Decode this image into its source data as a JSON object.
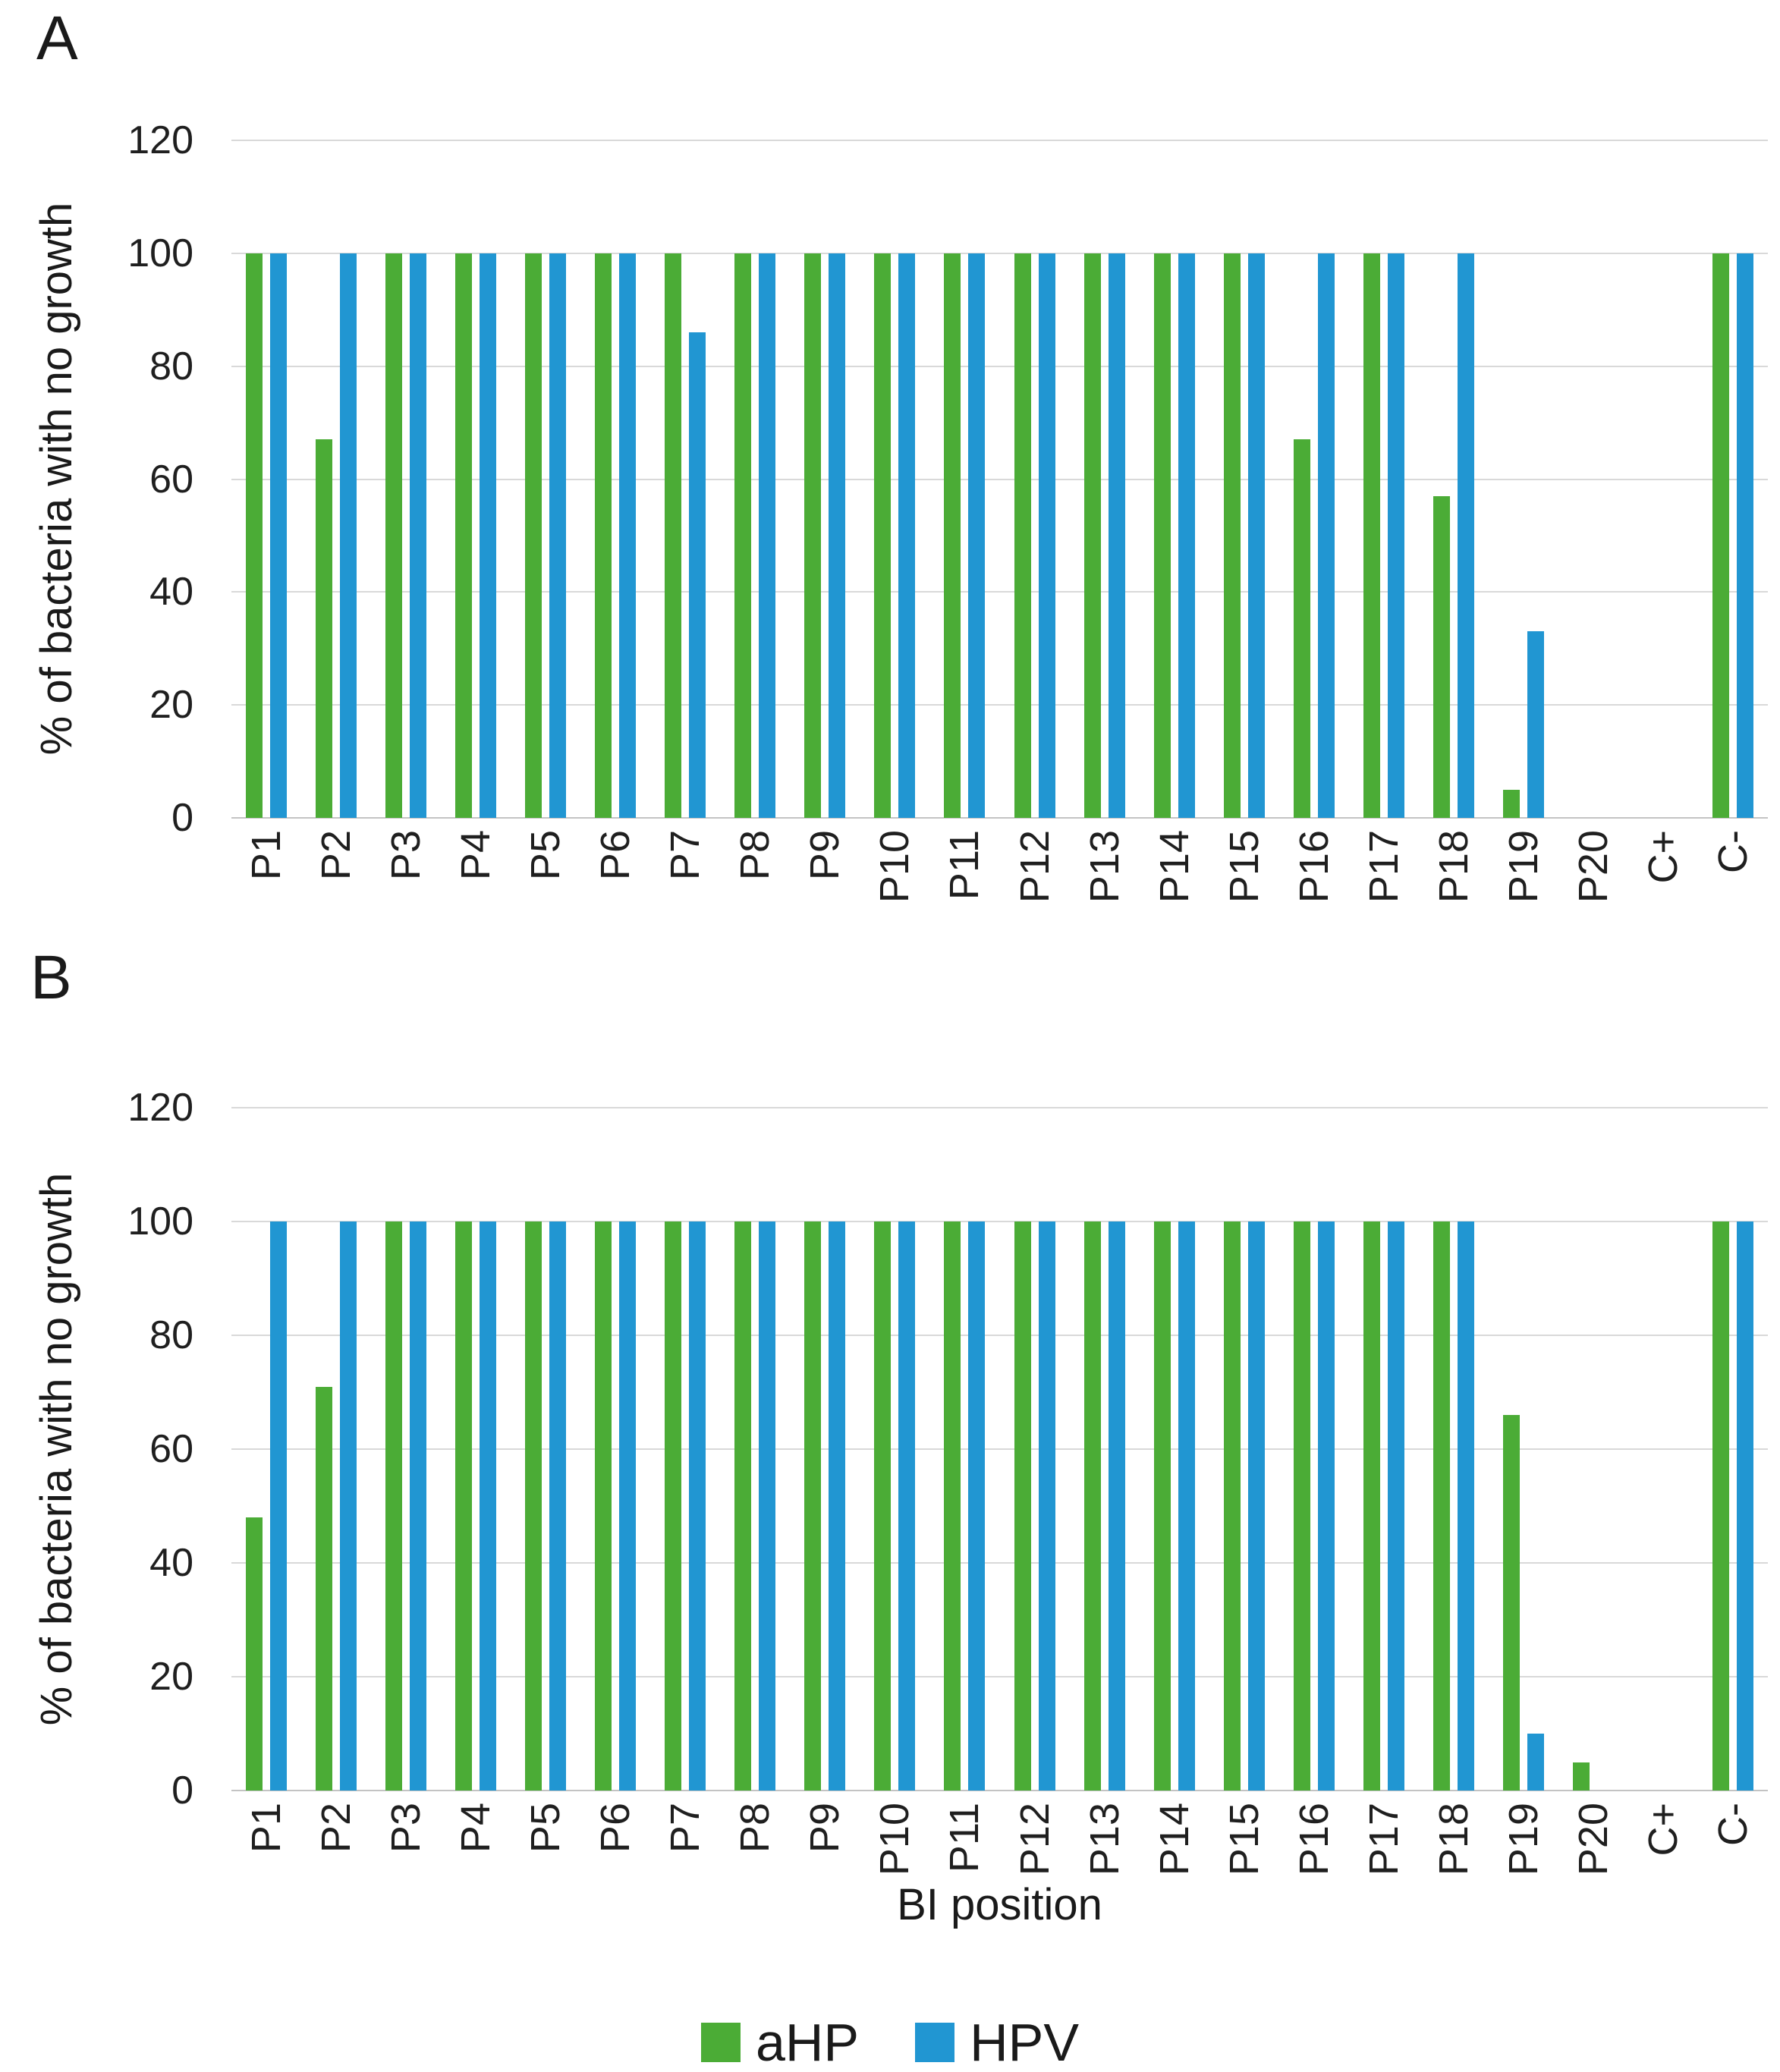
{
  "figure": {
    "panel_labels": [
      "A",
      "B"
    ],
    "colors": {
      "aHP": "#4bac36",
      "HPV": "#2196d2"
    },
    "legend": {
      "position": "bottom-center",
      "items": [
        {
          "label": "aHP",
          "color": "#4bac36"
        },
        {
          "label": "HPV",
          "color": "#2196d2"
        }
      ]
    }
  },
  "chart_data": [
    {
      "type": "bar",
      "panel_label": "A",
      "title": "",
      "xlabel": "",
      "ylabel": "% of bacteria with no growth",
      "ylim": [
        0,
        120
      ],
      "yticks": [
        0,
        20,
        40,
        60,
        80,
        100,
        120
      ],
      "grid": "horizontal",
      "legend_position": "bottom",
      "categories": [
        "P1",
        "P2",
        "P3",
        "P4",
        "P5",
        "P6",
        "P7",
        "P8",
        "P9",
        "P10",
        "P11",
        "P12",
        "P13",
        "P14",
        "P15",
        "P16",
        "P17",
        "P18",
        "P19",
        "P20",
        "C+",
        "C-"
      ],
      "series": [
        {
          "name": "aHP",
          "color": "#4bac36",
          "values": [
            100,
            67,
            100,
            100,
            100,
            100,
            100,
            100,
            100,
            100,
            100,
            100,
            100,
            100,
            100,
            67,
            100,
            57,
            5,
            0,
            0,
            100
          ]
        },
        {
          "name": "HPV",
          "color": "#2196d2",
          "values": [
            100,
            100,
            100,
            100,
            100,
            100,
            86,
            100,
            100,
            100,
            100,
            100,
            100,
            100,
            100,
            100,
            100,
            100,
            33,
            0,
            0,
            100
          ]
        }
      ]
    },
    {
      "type": "bar",
      "panel_label": "B",
      "title": "",
      "xlabel": "BI position",
      "ylabel": "% of bacteria with no growth",
      "ylim": [
        0,
        120
      ],
      "yticks": [
        0,
        20,
        40,
        60,
        80,
        100,
        120
      ],
      "grid": "horizontal",
      "legend_position": "bottom",
      "categories": [
        "P1",
        "P2",
        "P3",
        "P4",
        "P5",
        "P6",
        "P7",
        "P8",
        "P9",
        "P10",
        "P11",
        "P12",
        "P13",
        "P14",
        "P15",
        "P16",
        "P17",
        "P18",
        "P19",
        "P20",
        "C+",
        "C-"
      ],
      "series": [
        {
          "name": "aHP",
          "color": "#4bac36",
          "values": [
            48,
            71,
            100,
            100,
            100,
            100,
            100,
            100,
            100,
            100,
            100,
            100,
            100,
            100,
            100,
            100,
            100,
            100,
            66,
            5,
            0,
            100
          ]
        },
        {
          "name": "HPV",
          "color": "#2196d2",
          "values": [
            100,
            100,
            100,
            100,
            100,
            100,
            100,
            100,
            100,
            100,
            100,
            100,
            100,
            100,
            100,
            100,
            100,
            100,
            10,
            0,
            0,
            100
          ]
        }
      ]
    }
  ]
}
